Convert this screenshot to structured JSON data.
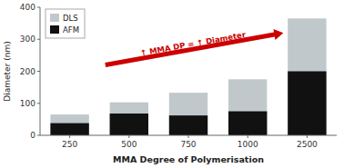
{
  "chart_data": {
    "type": "bar",
    "xlabel": "MMA Degree of Polymerisation",
    "ylabel": "Diameter (nm)",
    "categories": [
      "250",
      "500",
      "750",
      "1000",
      "2500"
    ],
    "series": [
      {
        "name": "DLS",
        "color": "#c0c8cc",
        "values": [
          65,
          103,
          133,
          175,
          365
        ]
      },
      {
        "name": "AFM",
        "color": "#111111",
        "values": [
          38,
          68,
          62,
          75,
          200
        ]
      }
    ],
    "stacked": false,
    "ylim": [
      0,
      400
    ],
    "yticks": [
      0,
      100,
      200,
      300,
      400
    ],
    "grid": false,
    "legend": "upper-left",
    "annotations": [
      {
        "text": "↑ MMA DP = ↑ Diameter",
        "color": "#cc0000"
      }
    ]
  }
}
